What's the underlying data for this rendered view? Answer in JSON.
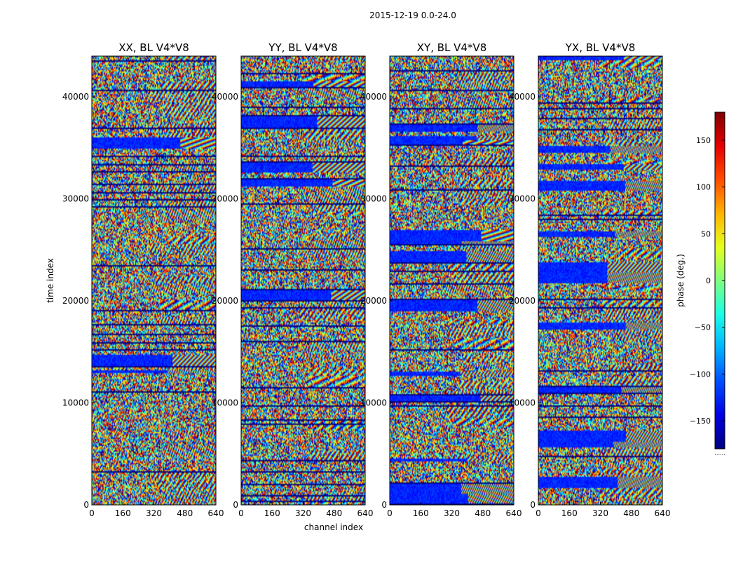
{
  "chart_data": {
    "type": "heatmap",
    "suptitle": "2015-12-19 0.0-24.0",
    "xlabel": "channel index",
    "ylabel": "time index",
    "xlim": [
      0,
      640
    ],
    "ylim": [
      0,
      44000
    ],
    "x_ticks": [
      0,
      160,
      320,
      480,
      640
    ],
    "y_ticks": [
      0,
      10000,
      20000,
      30000,
      40000
    ],
    "colorbar": {
      "label": "phase (deg.)",
      "range": [
        -180,
        180
      ],
      "ticks": [
        -150,
        -100,
        -50,
        0,
        50,
        100,
        150
      ],
      "colormap": "jet",
      "stray_text": "......"
    },
    "panels": [
      {
        "title": "XX, BL V4*V8",
        "seed": 11
      },
      {
        "title": "YY, BL V4*V8",
        "seed": 23
      },
      {
        "title": "XY, BL V4*V8",
        "seed": 37
      },
      {
        "title": "YX, BL V4*V8",
        "seed": 53
      }
    ]
  }
}
